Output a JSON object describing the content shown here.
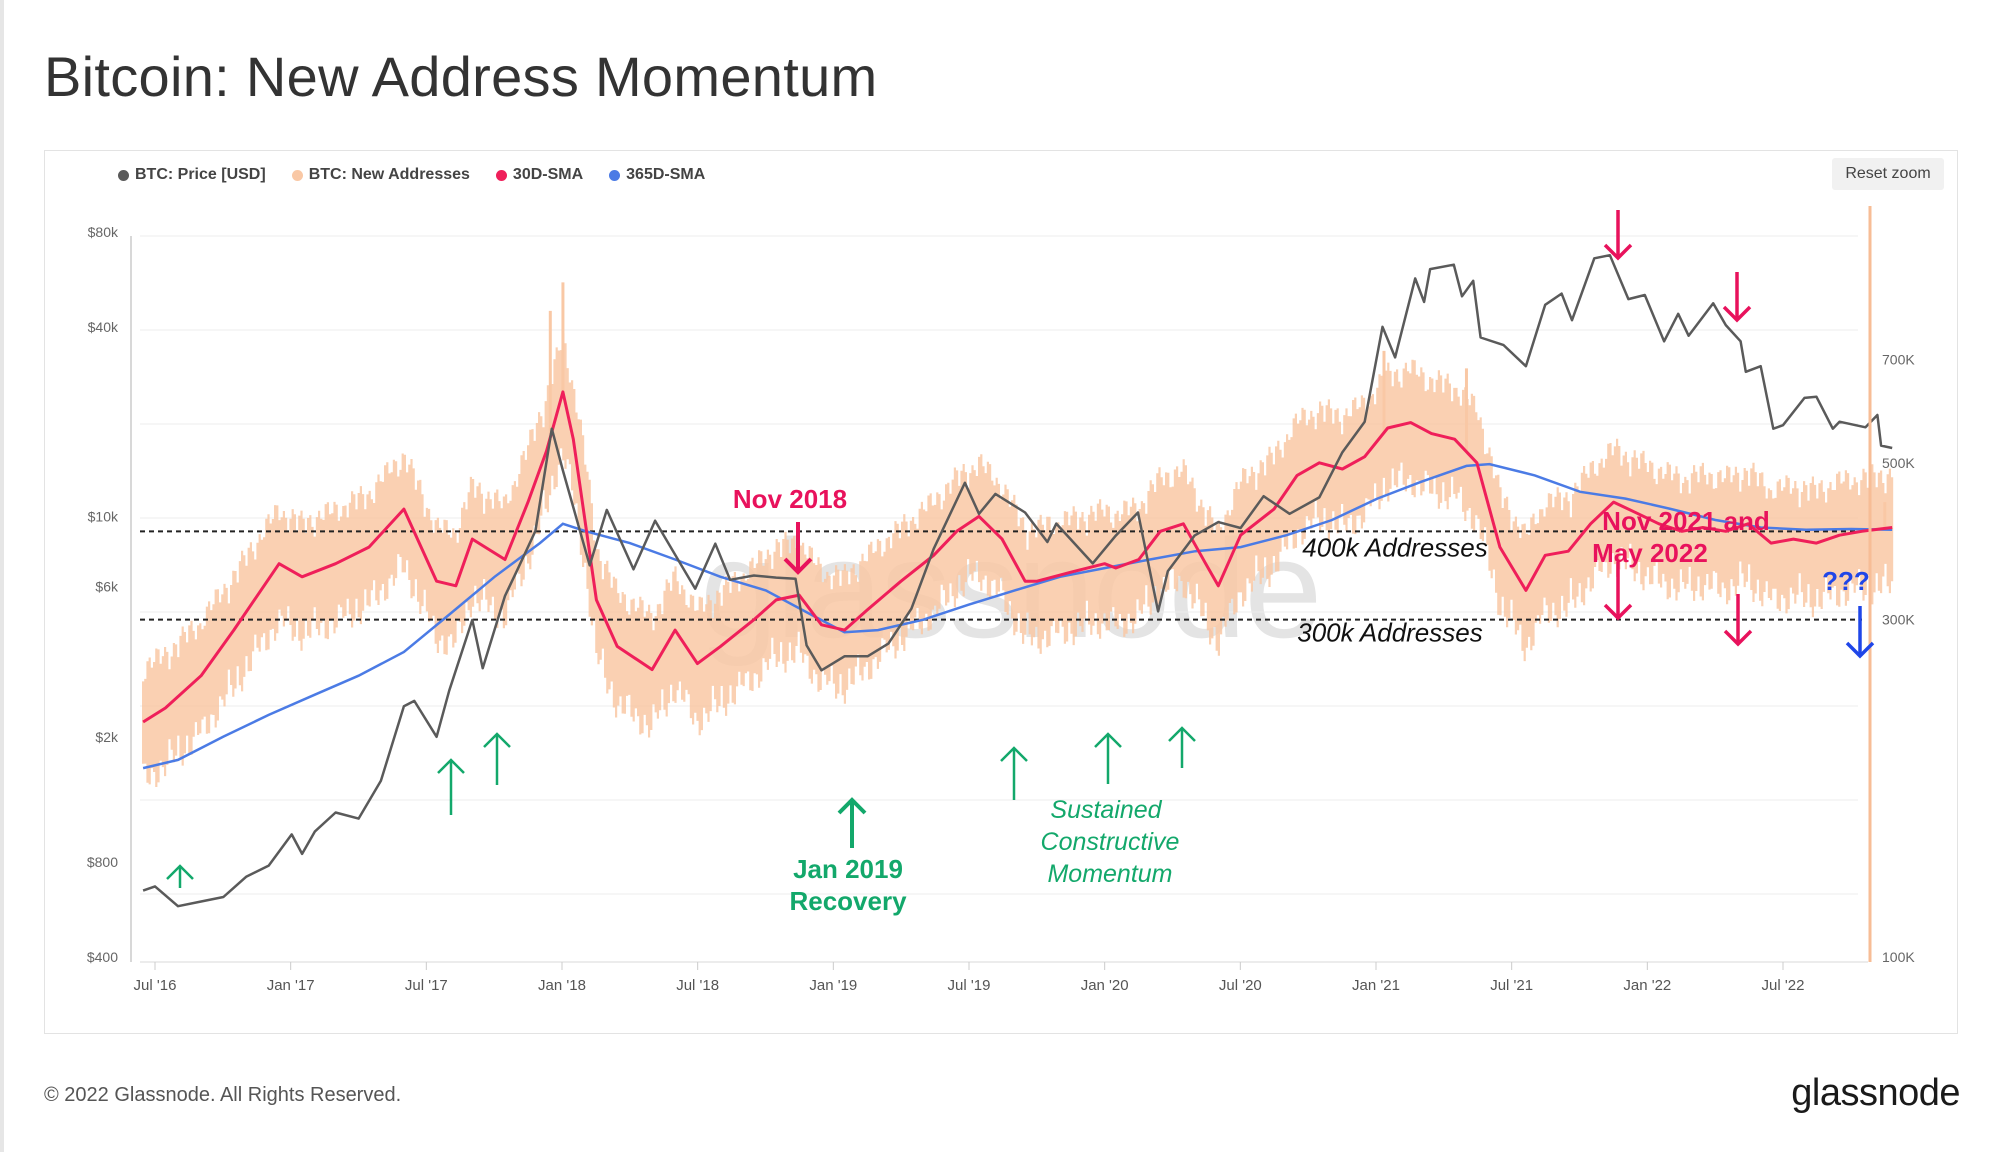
{
  "page": {
    "title": "Bitcoin: New Address Momentum"
  },
  "toolbar": {
    "reset_zoom": "Reset zoom"
  },
  "watermark": "glassnode",
  "footer": {
    "copyright": "© 2022 Glassnode. All Rights Reserved.",
    "logo": "glassnode"
  },
  "colors": {
    "price": "#5a5a5a",
    "new_addresses": "#f9c8a5",
    "sma30": "#ef1f5a",
    "sma365": "#4b7be5",
    "green": "#13a86b",
    "pink": "#e8125c",
    "blue": "#1f46e8"
  },
  "chart_data": {
    "type": "line",
    "legend": [
      "BTC: Price [USD]",
      "BTC: New Addresses",
      "30D-SMA",
      "365D-SMA"
    ],
    "legend_placement": "top-left",
    "x_ticks": [
      "Jul '16",
      "Jan '17",
      "Jul '17",
      "Jan '18",
      "Jul '18",
      "Jan '19",
      "Jul '19",
      "Jan '20",
      "Jul '20",
      "Jan '21",
      "Jul '21",
      "Jan '22",
      "Jul '22"
    ],
    "left_axis": {
      "scale": "log",
      "ticks": [
        "$400",
        "$800",
        "$2k",
        "$6k",
        "$10k",
        "$40k",
        "$80k"
      ],
      "tick_values": [
        400,
        800,
        2000,
        6000,
        10000,
        40000,
        80000
      ],
      "ylim": [
        400,
        80000
      ]
    },
    "right_axis": {
      "scale": "log",
      "ticks": [
        "100K",
        "300K",
        "500K",
        "700K"
      ],
      "tick_values": [
        100000,
        300000,
        500000,
        700000
      ],
      "ylim": [
        100000,
        1000000
      ]
    },
    "series": [
      {
        "name": "BTC: Price [USD]",
        "axis": "left",
        "points": [
          [
            "2016-06-15",
            650
          ],
          [
            "2016-07-01",
            670
          ],
          [
            "2016-08-01",
            580
          ],
          [
            "2016-09-01",
            600
          ],
          [
            "2016-10-01",
            620
          ],
          [
            "2016-11-01",
            720
          ],
          [
            "2016-12-01",
            780
          ],
          [
            "2017-01-01",
            980
          ],
          [
            "2017-01-15",
            850
          ],
          [
            "2017-02-01",
            1000
          ],
          [
            "2017-03-01",
            1150
          ],
          [
            "2017-04-01",
            1100
          ],
          [
            "2017-05-01",
            1450
          ],
          [
            "2017-06-01",
            2500
          ],
          [
            "2017-06-15",
            2600
          ],
          [
            "2017-07-15",
            2000
          ],
          [
            "2017-08-01",
            2800
          ],
          [
            "2017-09-01",
            4700
          ],
          [
            "2017-09-15",
            3300
          ],
          [
            "2017-10-15",
            5600
          ],
          [
            "2017-11-01",
            6800
          ],
          [
            "2017-11-25",
            9000
          ],
          [
            "2017-12-17",
            19000
          ],
          [
            "2018-01-01",
            14000
          ],
          [
            "2018-02-06",
            7000
          ],
          [
            "2018-03-01",
            10500
          ],
          [
            "2018-04-06",
            6800
          ],
          [
            "2018-05-05",
            9700
          ],
          [
            "2018-06-28",
            5900
          ],
          [
            "2018-07-25",
            8200
          ],
          [
            "2018-08-14",
            6300
          ],
          [
            "2018-09-15",
            6500
          ],
          [
            "2018-10-15",
            6400
          ],
          [
            "2018-11-10",
            6350
          ],
          [
            "2018-11-25",
            3900
          ],
          [
            "2018-12-15",
            3250
          ],
          [
            "2019-01-15",
            3600
          ],
          [
            "2019-02-15",
            3600
          ],
          [
            "2019-03-15",
            3950
          ],
          [
            "2019-04-15",
            5100
          ],
          [
            "2019-05-15",
            7900
          ],
          [
            "2019-06-26",
            12800
          ],
          [
            "2019-07-15",
            10200
          ],
          [
            "2019-08-06",
            11800
          ],
          [
            "2019-09-15",
            10300
          ],
          [
            "2019-10-15",
            8300
          ],
          [
            "2019-10-27",
            9500
          ],
          [
            "2019-12-15",
            7100
          ],
          [
            "2020-01-15",
            8700
          ],
          [
            "2020-02-14",
            10300
          ],
          [
            "2020-03-12",
            5000
          ],
          [
            "2020-03-25",
            6700
          ],
          [
            "2020-04-30",
            8700
          ],
          [
            "2020-06-01",
            9600
          ],
          [
            "2020-07-01",
            9200
          ],
          [
            "2020-08-01",
            11600
          ],
          [
            "2020-09-05",
            10200
          ],
          [
            "2020-10-15",
            11500
          ],
          [
            "2020-11-15",
            16000
          ],
          [
            "2020-12-15",
            20000
          ],
          [
            "2021-01-08",
            40000
          ],
          [
            "2021-01-25",
            32000
          ],
          [
            "2021-02-21",
            57000
          ],
          [
            "2021-03-05",
            48000
          ],
          [
            "2021-03-13",
            61000
          ],
          [
            "2021-04-14",
            63000
          ],
          [
            "2021-04-25",
            50000
          ],
          [
            "2021-05-10",
            56000
          ],
          [
            "2021-05-20",
            37000
          ],
          [
            "2021-06-20",
            35000
          ],
          [
            "2021-07-20",
            30000
          ],
          [
            "2021-08-15",
            47000
          ],
          [
            "2021-09-06",
            51000
          ],
          [
            "2021-09-20",
            42000
          ],
          [
            "2021-10-20",
            66000
          ],
          [
            "2021-11-10",
            67500
          ],
          [
            "2021-12-05",
            49000
          ],
          [
            "2021-12-27",
            50500
          ],
          [
            "2022-01-22",
            36000
          ],
          [
            "2022-02-10",
            44000
          ],
          [
            "2022-02-24",
            37500
          ],
          [
            "2022-03-29",
            47500
          ],
          [
            "2022-04-15",
            40500
          ],
          [
            "2022-05-05",
            36000
          ],
          [
            "2022-05-12",
            28800
          ],
          [
            "2022-06-01",
            30000
          ],
          [
            "2022-06-18",
            19000
          ],
          [
            "2022-07-01",
            19500
          ],
          [
            "2022-07-30",
            23800
          ],
          [
            "2022-08-15",
            24000
          ],
          [
            "2022-09-06",
            19000
          ],
          [
            "2022-09-15",
            20000
          ],
          [
            "2022-10-20",
            19200
          ],
          [
            "2022-11-05",
            21000
          ],
          [
            "2022-11-10",
            16800
          ],
          [
            "2022-11-25",
            16500
          ]
        ]
      },
      {
        "name": "30D-SMA",
        "axis": "right",
        "points": [
          [
            "2016-06-15",
            215000
          ],
          [
            "2016-07-15",
            225000
          ],
          [
            "2016-09-01",
            250000
          ],
          [
            "2016-10-15",
            290000
          ],
          [
            "2016-12-15",
            360000
          ],
          [
            "2017-01-15",
            345000
          ],
          [
            "2017-03-01",
            360000
          ],
          [
            "2017-04-15",
            380000
          ],
          [
            "2017-06-01",
            430000
          ],
          [
            "2017-07-15",
            340000
          ],
          [
            "2017-08-10",
            335000
          ],
          [
            "2017-09-01",
            390000
          ],
          [
            "2017-10-15",
            365000
          ],
          [
            "2017-11-15",
            440000
          ],
          [
            "2017-12-10",
            520000
          ],
          [
            "2018-01-01",
            630000
          ],
          [
            "2018-01-15",
            540000
          ],
          [
            "2018-02-15",
            320000
          ],
          [
            "2018-03-15",
            275000
          ],
          [
            "2018-05-01",
            255000
          ],
          [
            "2018-06-01",
            290000
          ],
          [
            "2018-07-01",
            260000
          ],
          [
            "2018-08-01",
            275000
          ],
          [
            "2018-09-15",
            300000
          ],
          [
            "2018-10-15",
            320000
          ],
          [
            "2018-11-15",
            325000
          ],
          [
            "2018-12-15",
            295000
          ],
          [
            "2019-01-15",
            290000
          ],
          [
            "2019-02-15",
            310000
          ],
          [
            "2019-04-01",
            340000
          ],
          [
            "2019-05-15",
            370000
          ],
          [
            "2019-06-15",
            400000
          ],
          [
            "2019-07-15",
            420000
          ],
          [
            "2019-08-15",
            390000
          ],
          [
            "2019-09-15",
            340000
          ],
          [
            "2019-10-01",
            340000
          ],
          [
            "2019-11-15",
            350000
          ],
          [
            "2019-12-31",
            360000
          ],
          [
            "2020-01-15",
            355000
          ],
          [
            "2020-02-15",
            365000
          ],
          [
            "2020-03-15",
            400000
          ],
          [
            "2020-04-15",
            410000
          ],
          [
            "2020-05-15",
            360000
          ],
          [
            "2020-06-01",
            335000
          ],
          [
            "2020-07-01",
            395000
          ],
          [
            "2020-08-15",
            430000
          ],
          [
            "2020-09-15",
            480000
          ],
          [
            "2020-10-15",
            500000
          ],
          [
            "2020-11-15",
            490000
          ],
          [
            "2020-12-15",
            510000
          ],
          [
            "2021-01-15",
            560000
          ],
          [
            "2021-02-15",
            570000
          ],
          [
            "2021-03-15",
            550000
          ],
          [
            "2021-04-15",
            540000
          ],
          [
            "2021-05-15",
            500000
          ],
          [
            "2021-06-15",
            380000
          ],
          [
            "2021-07-20",
            330000
          ],
          [
            "2021-08-15",
            370000
          ],
          [
            "2021-09-15",
            375000
          ],
          [
            "2021-10-15",
            410000
          ],
          [
            "2021-11-15",
            440000
          ],
          [
            "2021-12-15",
            425000
          ],
          [
            "2022-01-15",
            410000
          ],
          [
            "2022-02-15",
            400000
          ],
          [
            "2022-03-15",
            405000
          ],
          [
            "2022-04-15",
            400000
          ],
          [
            "2022-05-15",
            410000
          ],
          [
            "2022-06-15",
            385000
          ],
          [
            "2022-07-15",
            390000
          ],
          [
            "2022-08-15",
            385000
          ],
          [
            "2022-09-15",
            395000
          ],
          [
            "2022-10-15",
            400000
          ],
          [
            "2022-11-25",
            405000
          ]
        ]
      },
      {
        "name": "365D-SMA",
        "axis": "right",
        "points": [
          [
            "2016-06-15",
            185000
          ],
          [
            "2016-08-01",
            190000
          ],
          [
            "2016-10-01",
            205000
          ],
          [
            "2016-12-01",
            220000
          ],
          [
            "2017-02-01",
            235000
          ],
          [
            "2017-04-01",
            250000
          ],
          [
            "2017-06-01",
            270000
          ],
          [
            "2017-08-01",
            305000
          ],
          [
            "2017-10-01",
            345000
          ],
          [
            "2017-12-01",
            385000
          ],
          [
            "2018-01-01",
            410000
          ],
          [
            "2018-02-01",
            400000
          ],
          [
            "2018-04-01",
            385000
          ],
          [
            "2018-06-01",
            365000
          ],
          [
            "2018-08-01",
            345000
          ],
          [
            "2018-10-01",
            330000
          ],
          [
            "2018-12-01",
            305000
          ],
          [
            "2019-01-15",
            288000
          ],
          [
            "2019-03-01",
            290000
          ],
          [
            "2019-05-01",
            300000
          ],
          [
            "2019-07-01",
            315000
          ],
          [
            "2019-09-01",
            330000
          ],
          [
            "2019-11-01",
            345000
          ],
          [
            "2020-01-01",
            355000
          ],
          [
            "2020-03-01",
            365000
          ],
          [
            "2020-05-01",
            375000
          ],
          [
            "2020-07-01",
            380000
          ],
          [
            "2020-09-01",
            395000
          ],
          [
            "2020-11-01",
            415000
          ],
          [
            "2021-01-01",
            445000
          ],
          [
            "2021-03-01",
            470000
          ],
          [
            "2021-05-01",
            495000
          ],
          [
            "2021-06-01",
            498000
          ],
          [
            "2021-08-01",
            480000
          ],
          [
            "2021-10-01",
            455000
          ],
          [
            "2021-12-01",
            445000
          ],
          [
            "2022-02-01",
            430000
          ],
          [
            "2022-04-01",
            415000
          ],
          [
            "2022-06-01",
            405000
          ],
          [
            "2022-08-01",
            402000
          ],
          [
            "2022-10-01",
            403000
          ],
          [
            "2022-11-25",
            402000
          ]
        ]
      },
      {
        "name": "BTC: New Addresses",
        "axis": "right",
        "shape": "daily values oscillating around 30D-SMA",
        "peaks": [
          [
            "2018-01-01",
            900000
          ],
          [
            "2017-12-15",
            820000
          ],
          [
            "2021-01-10",
            720000
          ],
          [
            "2021-05-01",
            680000
          ],
          [
            "2022-11-15",
            440000
          ]
        ]
      }
    ],
    "reference_lines": [
      {
        "value": 400000,
        "label": "400k Addresses"
      },
      {
        "value": 300000,
        "label": "300k Addresses"
      }
    ],
    "annotations": [
      {
        "text": "Nov 2018",
        "color": "pink"
      },
      {
        "text": "Jan 2019",
        "text2": "Recovery",
        "color": "green"
      },
      {
        "text": "Sustained",
        "text2": "Constructive",
        "text3": "Momentum",
        "color": "green"
      },
      {
        "text": "Nov 2021 and",
        "text2": "May 2022",
        "color": "pink"
      },
      {
        "text": "???",
        "color": "blue"
      }
    ]
  }
}
